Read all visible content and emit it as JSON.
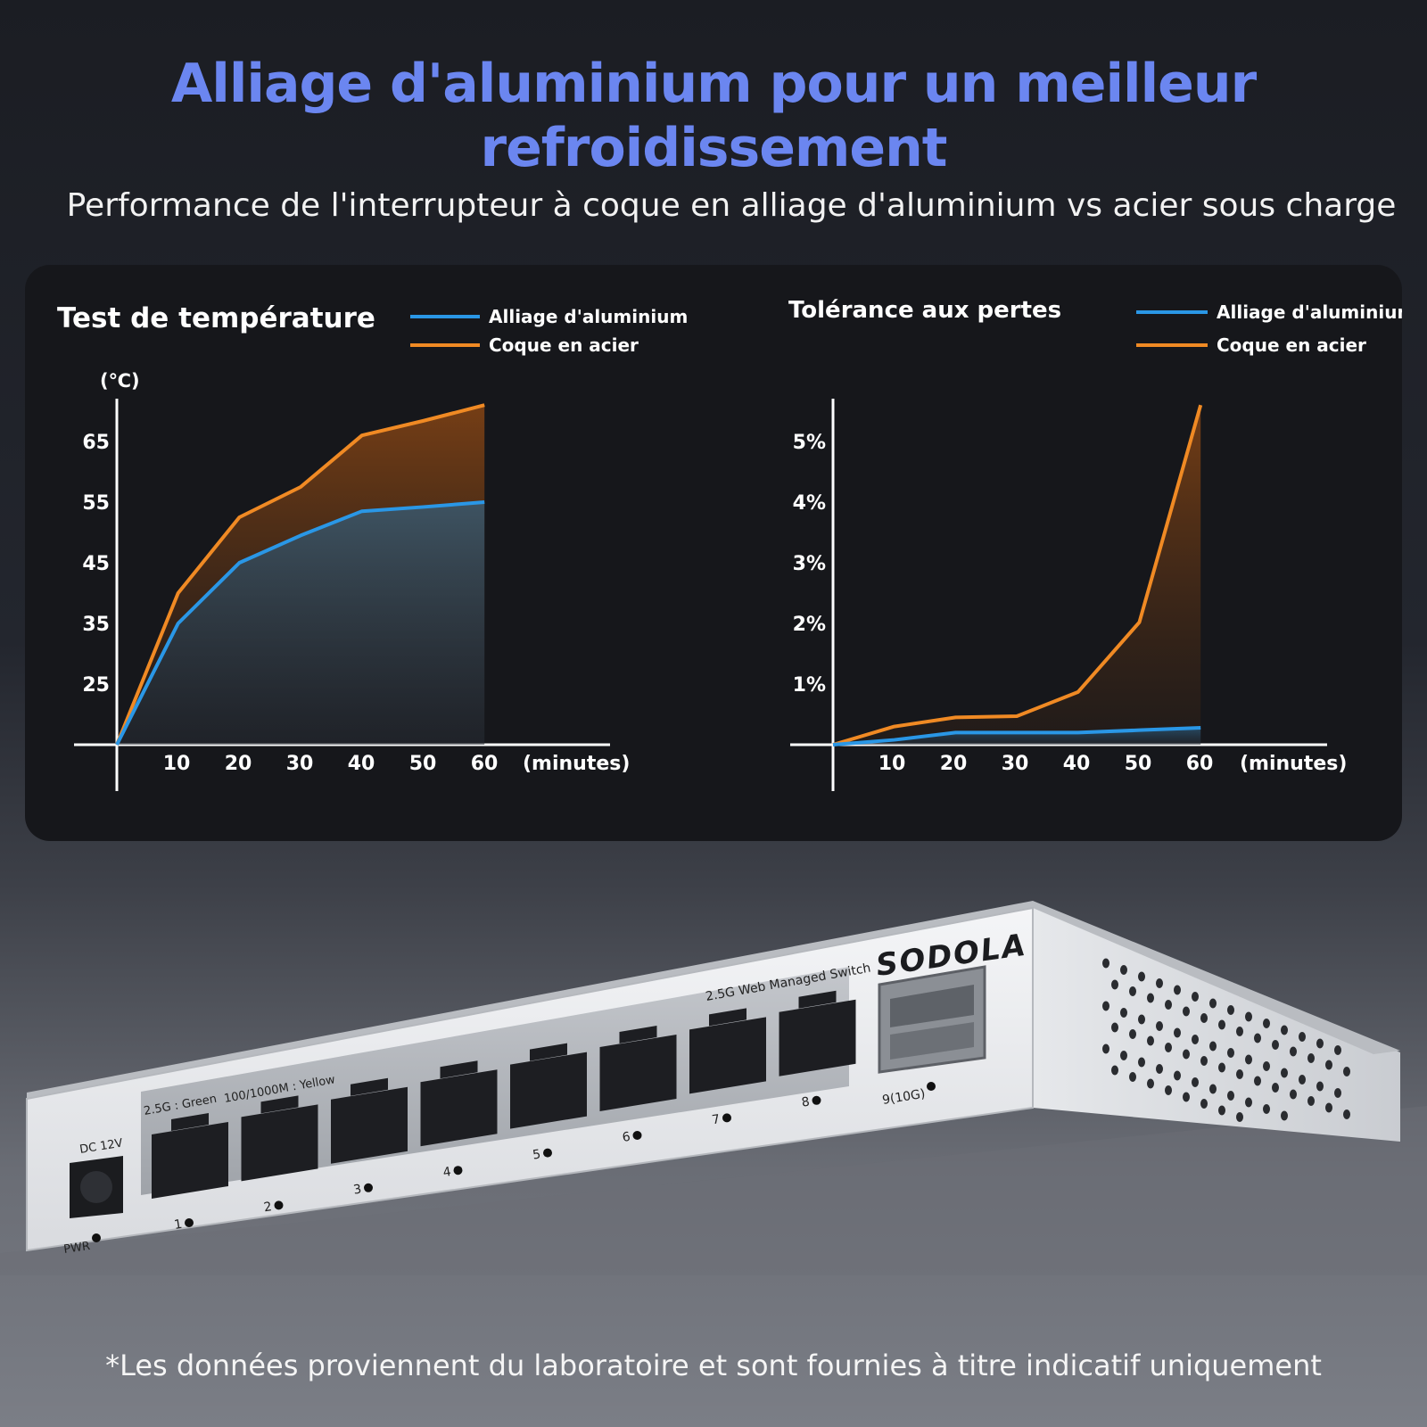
{
  "header": {
    "title_line1": "Alliage d'aluminium pour un meilleur",
    "title_line2": "refroidissement",
    "subtitle": "Performance de l'interrupteur à coque en alliage d'aluminium vs acier sous charge"
  },
  "colors": {
    "aluminium": "#2a97e6",
    "steel": "#f08a24",
    "title": "#6b86f0"
  },
  "chart_data": [
    {
      "type": "area",
      "title": "Test de température",
      "ylabel": "(℃)",
      "xlabel": "(minutes)",
      "xlim": [
        0,
        65
      ],
      "ylim": [
        15,
        70
      ],
      "x_ticks": [
        "10",
        "20",
        "30",
        "40",
        "50",
        "60"
      ],
      "y_ticks": [
        "65",
        "55",
        "45",
        "35",
        "25"
      ],
      "legend_position": "top-right",
      "grid": false,
      "series": [
        {
          "name": "Alliage d'aluminium",
          "color": "#2a97e6",
          "x": [
            0,
            10,
            20,
            30,
            40,
            50,
            60
          ],
          "values": [
            15,
            35,
            45,
            49.5,
            53.5,
            54.2,
            55
          ]
        },
        {
          "name": "Coque en acier",
          "color": "#f08a24",
          "x": [
            0,
            10,
            20,
            30,
            40,
            50,
            60
          ],
          "values": [
            15,
            40,
            52.5,
            57.5,
            66,
            68.4,
            71
          ]
        }
      ]
    },
    {
      "type": "area",
      "title": "Tolérance aux pertes",
      "ylabel": "",
      "xlabel": "(minutes)",
      "xlim": [
        0,
        65
      ],
      "ylim": [
        0,
        5.5
      ],
      "x_ticks": [
        "10",
        "20",
        "30",
        "40",
        "50",
        "60"
      ],
      "y_ticks": [
        "5%",
        "4%",
        "3%",
        "2%",
        "1%"
      ],
      "legend_position": "top-right",
      "grid": false,
      "series": [
        {
          "name": "Alliage d'aluminium",
          "color": "#2a97e6",
          "x": [
            0,
            10,
            20,
            30,
            40,
            50,
            60
          ],
          "values": [
            0,
            0.08,
            0.2,
            0.2,
            0.2,
            0.24,
            0.28
          ]
        },
        {
          "name": "Coque en acier",
          "color": "#f08a24",
          "x": [
            0,
            10,
            20,
            30,
            40,
            50,
            60
          ],
          "values": [
            0,
            0.3,
            0.45,
            0.47,
            0.87,
            2.02,
            5.6
          ]
        }
      ]
    }
  ],
  "device": {
    "brand": "SODOLA",
    "model_label": "2.5G Web Managed Switch",
    "speed_label_green": "2.5G : Green",
    "speed_label_yellow": "100/1000M : Yellow",
    "power_label": "DC 12V",
    "pwr_led_label": "PWR",
    "port_labels": [
      "1",
      "2",
      "3",
      "4",
      "5",
      "6",
      "7",
      "8"
    ],
    "sfp_label": "9(10G)"
  },
  "footnote": "*Les données proviennent du laboratoire et sont fournies à titre indicatif uniquement"
}
